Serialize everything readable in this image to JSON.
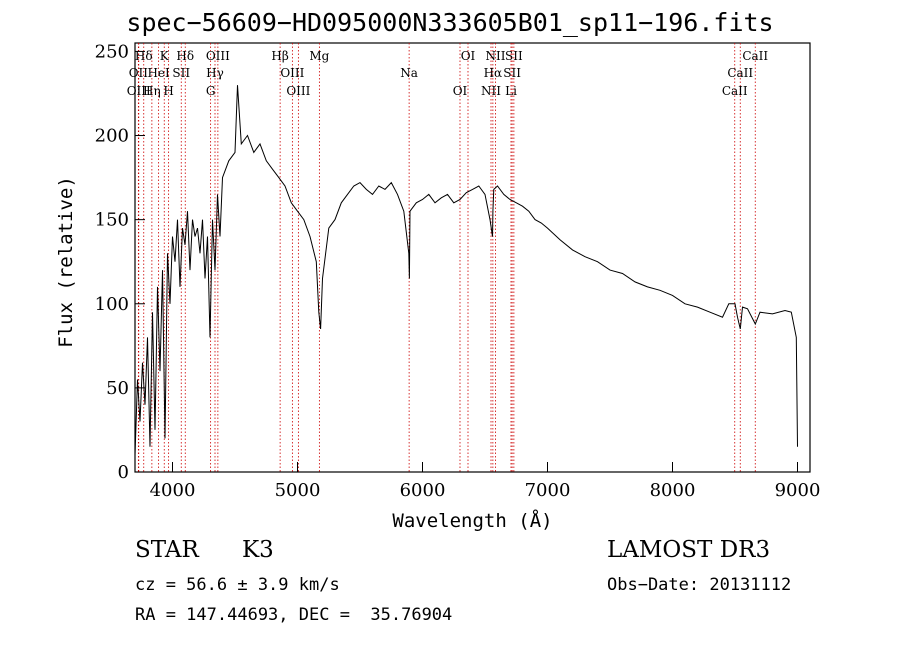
{
  "chart_data": {
    "type": "line",
    "title": "spec−56609−HD095000N333605B01_sp11−196.fits",
    "xlabel": "Wavelength (Å)",
    "ylabel": "Flux (relative)",
    "xlim": [
      3700,
      9100
    ],
    "ylim": [
      0,
      255
    ],
    "xticks": [
      4000,
      5000,
      6000,
      7000,
      8000,
      9000
    ],
    "yticks": [
      0,
      50,
      100,
      150,
      200,
      250
    ],
    "grid": false,
    "series": [
      {
        "name": "flux",
        "x": [
          3700,
          3720,
          3740,
          3760,
          3780,
          3800,
          3820,
          3840,
          3860,
          3880,
          3900,
          3920,
          3940,
          3960,
          3980,
          4000,
          4020,
          4040,
          4060,
          4080,
          4100,
          4120,
          4140,
          4160,
          4180,
          4200,
          4220,
          4240,
          4260,
          4280,
          4300,
          4320,
          4340,
          4360,
          4380,
          4400,
          4450,
          4500,
          4520,
          4550,
          4600,
          4650,
          4700,
          4750,
          4800,
          4850,
          4900,
          4950,
          5000,
          5050,
          5100,
          5150,
          5170,
          5185,
          5200,
          5250,
          5300,
          5350,
          5400,
          5450,
          5500,
          5550,
          5600,
          5650,
          5700,
          5750,
          5800,
          5850,
          5890,
          5895,
          5900,
          5950,
          6000,
          6050,
          6100,
          6150,
          6200,
          6250,
          6300,
          6350,
          6400,
          6450,
          6500,
          6540,
          6560,
          6563,
          6570,
          6600,
          6650,
          6700,
          6750,
          6800,
          6850,
          6900,
          6950,
          7000,
          7100,
          7200,
          7300,
          7400,
          7500,
          7600,
          7700,
          7800,
          7900,
          8000,
          8100,
          8200,
          8300,
          8400,
          8450,
          8500,
          8520,
          8542,
          8560,
          8600,
          8662,
          8700,
          8800,
          8900,
          8950,
          8990,
          9000
        ],
        "y": [
          10,
          55,
          30,
          65,
          40,
          80,
          15,
          95,
          25,
          110,
          60,
          120,
          20,
          130,
          100,
          140,
          125,
          150,
          110,
          145,
          135,
          155,
          120,
          150,
          140,
          145,
          130,
          150,
          115,
          140,
          80,
          150,
          120,
          165,
          140,
          175,
          185,
          190,
          230,
          195,
          200,
          190,
          195,
          185,
          180,
          175,
          170,
          160,
          155,
          150,
          140,
          125,
          95,
          85,
          115,
          145,
          150,
          160,
          165,
          170,
          172,
          168,
          165,
          170,
          168,
          172,
          165,
          155,
          130,
          115,
          155,
          160,
          162,
          165,
          160,
          163,
          165,
          160,
          162,
          166,
          168,
          170,
          165,
          150,
          140,
          155,
          168,
          170,
          165,
          162,
          160,
          158,
          155,
          150,
          148,
          145,
          138,
          132,
          128,
          125,
          120,
          118,
          113,
          110,
          108,
          105,
          100,
          98,
          95,
          92,
          100,
          100,
          92,
          85,
          98,
          97,
          88,
          95,
          94,
          96,
          95,
          80,
          15
        ]
      }
    ],
    "lines": [
      {
        "label": "Hδ",
        "x": 3770
      },
      {
        "label": "OII",
        "x": 3727
      },
      {
        "label": "OIII",
        "x": 3730
      },
      {
        "label": "K",
        "x": 3934
      },
      {
        "label": "HeI",
        "x": 3889
      },
      {
        "label": "Hη",
        "x": 3835
      },
      {
        "label": "Hδ",
        "x": 4102
      },
      {
        "label": "SII",
        "x": 4070
      },
      {
        "label": "H",
        "x": 3969
      },
      {
        "label": "OIII",
        "x": 4363
      },
      {
        "label": "Hγ",
        "x": 4340
      },
      {
        "label": "G",
        "x": 4305
      },
      {
        "label": "Hβ",
        "x": 4861
      },
      {
        "label": "OIII",
        "x": 4959
      },
      {
        "label": "OIII",
        "x": 5007
      },
      {
        "label": "Mg",
        "x": 5175
      },
      {
        "label": "Na",
        "x": 5893
      },
      {
        "label": "OI",
        "x": 6300
      },
      {
        "label": "OI",
        "x": 6364
      },
      {
        "label": "Hα",
        "x": 6563
      },
      {
        "label": "NII",
        "x": 6548
      },
      {
        "label": "NII",
        "x": 6584
      },
      {
        "label": "SII",
        "x": 6717
      },
      {
        "label": "Li",
        "x": 6708
      },
      {
        "label": "SII",
        "x": 6731
      },
      {
        "label": "CaII",
        "x": 8542
      },
      {
        "label": "CaII",
        "x": 8498
      },
      {
        "label": "CaII",
        "x": 8662
      }
    ]
  },
  "info": {
    "object_class": "STAR",
    "subclass": "K3",
    "survey": "LAMOST DR3",
    "cz_line": "cz = 56.6 ± 3.9 km/s",
    "obs_date_line": "Obs−Date: 20131112",
    "coord_line": "RA = 147.44693, DEC =  35.76904"
  },
  "colors": {
    "spectrum": "#000000",
    "line_marker": "#cc0000"
  }
}
